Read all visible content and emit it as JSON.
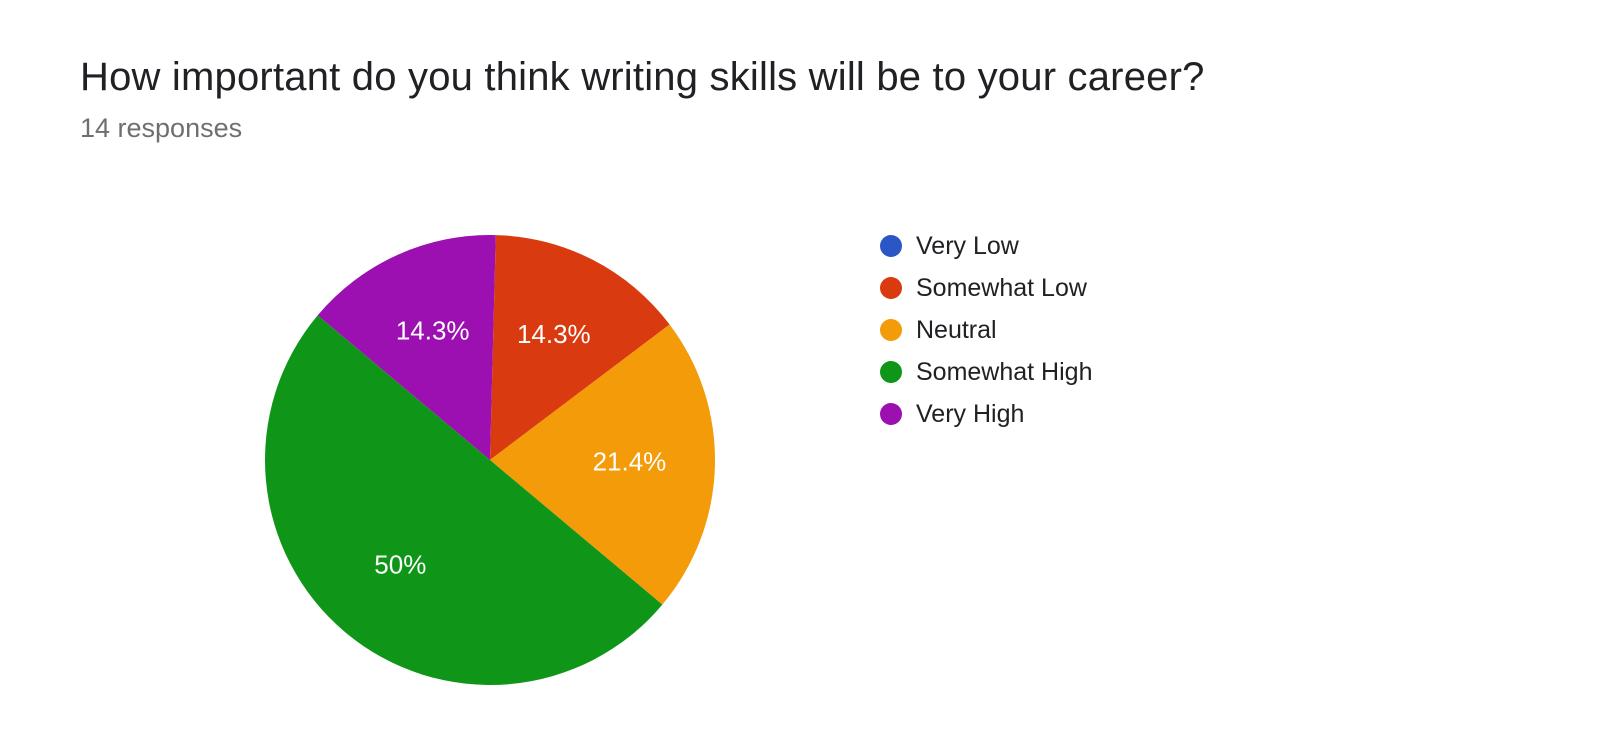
{
  "title": "How important do you think writing skills will be to your career?",
  "subtitle": "14 responses",
  "chart": {
    "type": "pie",
    "background_color": "#ffffff",
    "label_color": "#ffffff",
    "label_fontsize": 26,
    "title_fontsize": 40,
    "title_color": "#202124",
    "subtitle_fontsize": 27,
    "subtitle_color": "#6f6f6f",
    "legend_fontsize": 25,
    "legend_text_color": "#202124",
    "start_angle_deg": -50,
    "slices": [
      {
        "key": "very_high",
        "label": "Very High",
        "value": 2,
        "percent": 14.3,
        "percent_label": "14.3%",
        "color": "#9c0fb0",
        "show_label": true
      },
      {
        "key": "somewhat_low",
        "label": "Somewhat Low",
        "value": 2,
        "percent": 14.3,
        "percent_label": "14.3%",
        "color": "#da3a0f",
        "show_label": true
      },
      {
        "key": "neutral",
        "label": "Neutral",
        "value": 3,
        "percent": 21.4,
        "percent_label": "21.4%",
        "color": "#f39b08",
        "show_label": true
      },
      {
        "key": "somewhat_high",
        "label": "Somewhat High",
        "value": 7,
        "percent": 50.0,
        "percent_label": "50%",
        "color": "#0f9618",
        "show_label": true
      },
      {
        "key": "very_low",
        "label": "Very Low",
        "value": 0,
        "percent": 0.0,
        "percent_label": "",
        "color": "#2a56c6",
        "show_label": false
      }
    ],
    "legend_order": [
      "very_low",
      "somewhat_low",
      "neutral",
      "somewhat_high",
      "very_high"
    ]
  }
}
